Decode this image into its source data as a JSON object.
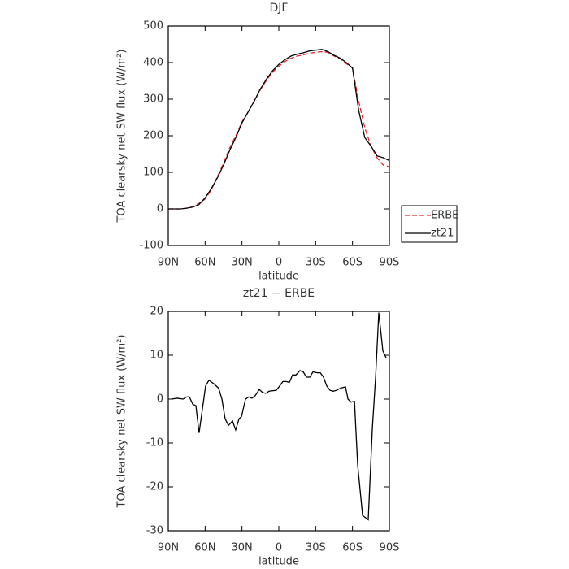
{
  "chart_data": [
    {
      "type": "line",
      "title": "DJF",
      "xlabel": "latitude",
      "ylabel": "TOA clearsky net SW flux (W/m²)",
      "x": [
        90,
        85,
        80,
        75,
        70,
        65,
        60,
        55,
        50,
        45,
        40,
        35,
        30,
        25,
        20,
        15,
        10,
        5,
        0,
        -5,
        -10,
        -15,
        -20,
        -25,
        -30,
        -35,
        -40,
        -45,
        -50,
        -55,
        -60,
        -65,
        -70,
        -75,
        -80,
        -85,
        -90
      ],
      "series": [
        {
          "name": "ERBE",
          "color": "#e8262a",
          "linestyle": "dashed",
          "values": [
            0,
            0,
            0,
            2,
            6,
            15,
            27,
            52,
            88,
            125,
            167,
            200,
            238,
            265,
            294,
            326,
            352,
            374,
            390,
            403,
            412,
            418,
            421,
            426,
            428,
            430,
            428,
            418,
            410,
            397,
            385,
            295,
            222,
            172,
            140,
            120,
            115
          ]
        },
        {
          "name": "zt21",
          "color": "#000000",
          "linestyle": "solid",
          "values": [
            0,
            0,
            0,
            2,
            5,
            12,
            30,
            55,
            85,
            120,
            160,
            195,
            235,
            265,
            295,
            328,
            355,
            378,
            395,
            408,
            418,
            423,
            427,
            432,
            434,
            436,
            430,
            420,
            412,
            400,
            385,
            270,
            195,
            172,
            145,
            140,
            132
          ]
        }
      ],
      "xlim": [
        90,
        -90
      ],
      "xticks": [
        {
          "value": 90,
          "label": "90N"
        },
        {
          "value": 60,
          "label": "60N"
        },
        {
          "value": 30,
          "label": "30N"
        },
        0,
        {
          "value": -30,
          "label": "30S"
        },
        {
          "value": -60,
          "label": "60S"
        },
        {
          "value": -90,
          "label": "90S"
        }
      ],
      "ylim": [
        -100,
        500
      ],
      "yticks": [
        -100,
        0,
        100,
        200,
        300,
        400,
        500
      ],
      "legend": "right"
    },
    {
      "type": "line",
      "title": "zt21 − ERBE",
      "xlabel": "latitude",
      "ylabel": "TOA clearsky net SW flux (W/m²)",
      "x": [
        87.4,
        82.7,
        78,
        75,
        72.8,
        70,
        67.5,
        64.9,
        59.6,
        56.9,
        52.9,
        49,
        46.3,
        43.7,
        41,
        37.7,
        35.1,
        32.4,
        30.4,
        27.1,
        24.5,
        21.8,
        19.2,
        15.9,
        13.2,
        10.6,
        7.9,
        2,
        -0.7,
        -3.3,
        -6,
        -8.6,
        -11.2,
        -13.9,
        -17.2,
        -19.9,
        -22.5,
        -25.2,
        -27.8,
        -31.1,
        -33.8,
        -36.4,
        -39,
        -41.7,
        -44.3,
        -47,
        -50.3,
        -54.3,
        -56.3,
        -58.9,
        -61.6,
        -64.2,
        -68.2,
        -72.8,
        -76.1,
        -78.8,
        -81.4,
        -84.7,
        -87.4
      ],
      "values": [
        0,
        0.2,
        0,
        0.5,
        0.5,
        -1.2,
        -1.5,
        -7.7,
        3,
        4.3,
        3.5,
        2.5,
        0,
        -4.5,
        -6,
        -5,
        -7,
        -4.5,
        -4,
        0,
        0.5,
        0.2,
        0.8,
        2.2,
        1.5,
        1.3,
        1.8,
        2,
        3,
        4,
        4,
        3.8,
        5.5,
        5.5,
        6.5,
        6.2,
        5,
        5,
        6.2,
        6,
        6,
        5,
        3,
        2,
        1.8,
        2,
        2.5,
        2.8,
        0,
        -0.7,
        -0.5,
        -15,
        -26.5,
        -27.5,
        -7,
        5,
        19.7,
        11,
        9.4
      ],
      "color": "#000000",
      "xlim": [
        90,
        -90
      ],
      "xticks": [
        {
          "value": 90,
          "label": "90N"
        },
        {
          "value": 60,
          "label": "60N"
        },
        {
          "value": 30,
          "label": "30N"
        },
        0,
        {
          "value": -30,
          "label": "30S"
        },
        {
          "value": -60,
          "label": "60S"
        },
        {
          "value": -90,
          "label": "90S"
        }
      ],
      "ylim": [
        -30,
        20
      ],
      "yticks": [
        -30,
        -20,
        -10,
        0,
        10,
        20
      ]
    }
  ]
}
